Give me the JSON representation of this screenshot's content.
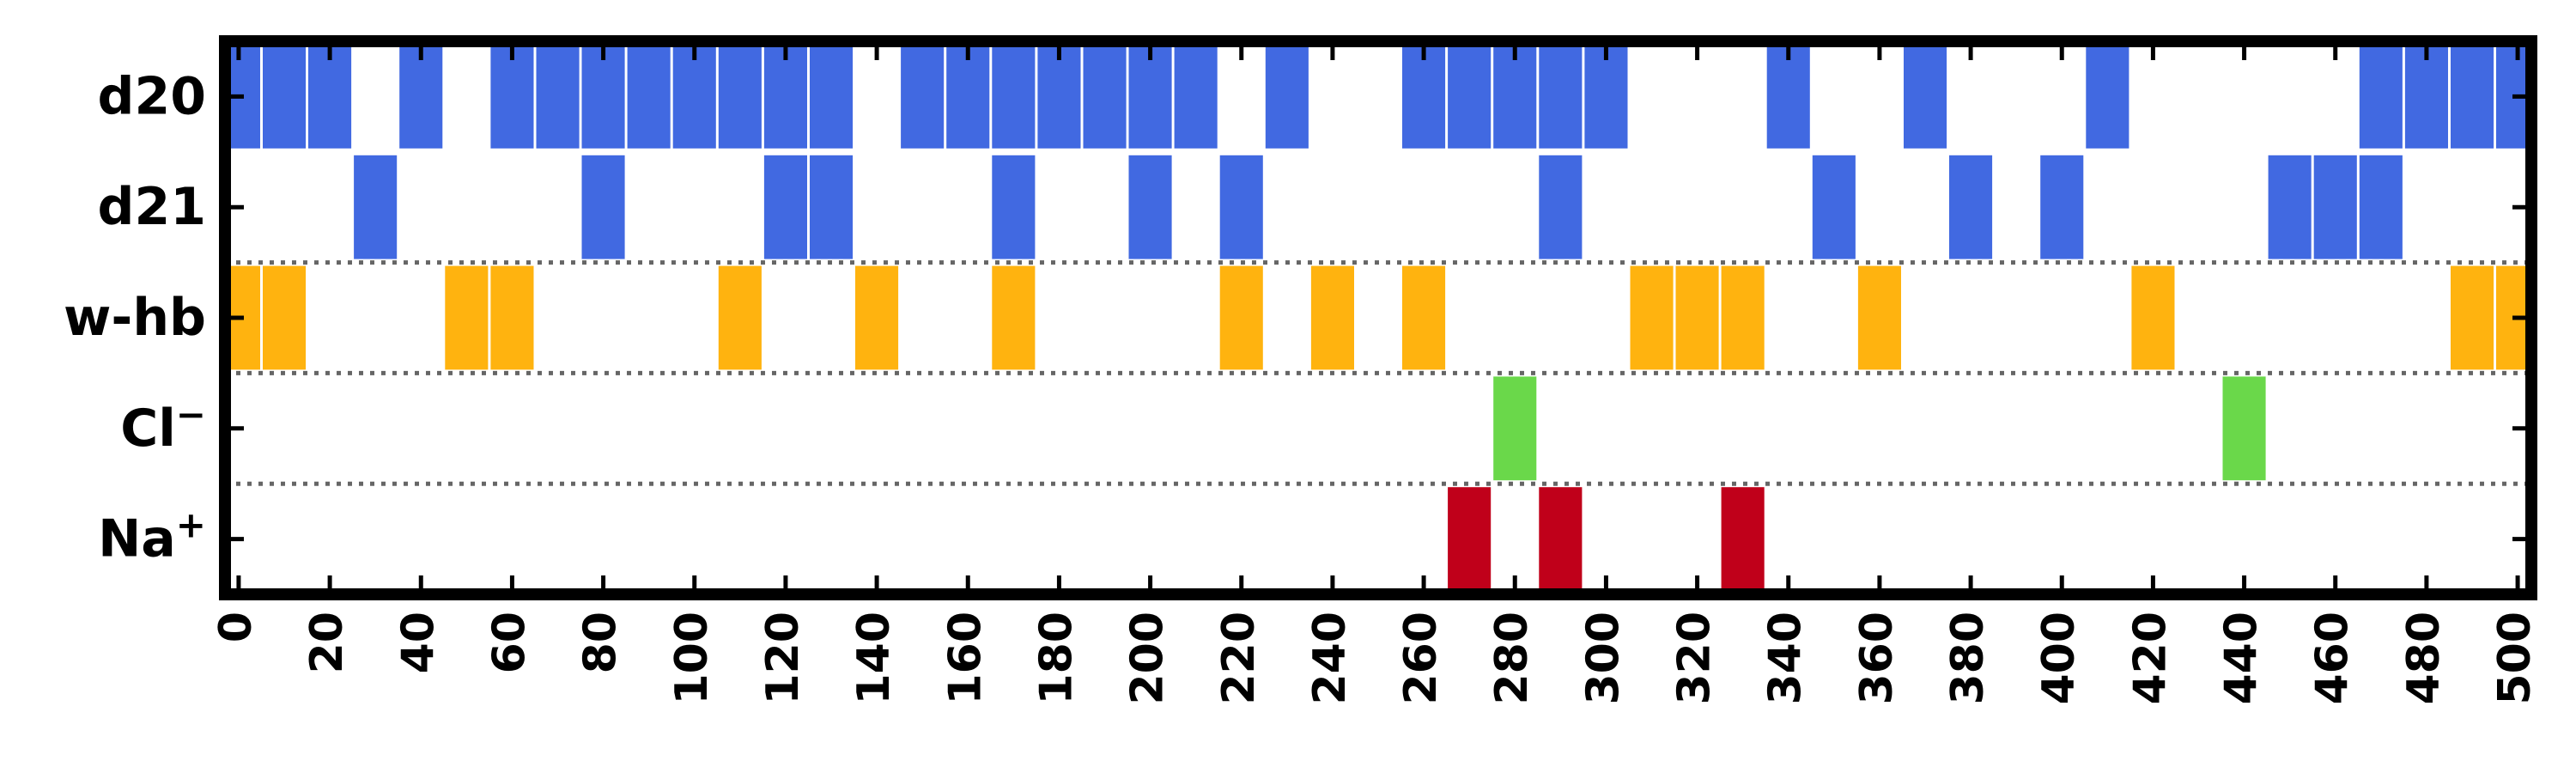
{
  "chart_data": {
    "type": "event-raster",
    "title": "",
    "xlabel": "",
    "ylabel": "",
    "xlim": [
      -3,
      503
    ],
    "xticks": [
      0,
      20,
      40,
      60,
      80,
      100,
      120,
      140,
      160,
      180,
      200,
      220,
      240,
      260,
      280,
      300,
      320,
      340,
      360,
      380,
      400,
      420,
      440,
      460,
      480,
      500
    ],
    "xtick_labels": [
      "0",
      "20",
      "40",
      "60",
      "80",
      "100",
      "120",
      "140",
      "160",
      "180",
      "200",
      "220",
      "240",
      "260",
      "280",
      "300",
      "320",
      "340",
      "360",
      "380",
      "400",
      "420",
      "440",
      "460",
      "480",
      "500"
    ],
    "bin_width": 10,
    "grid": false,
    "row_separators": "dotted lines between w-hb/d21, Cl⁻/w-hb, Na⁺/Cl⁻",
    "rows": [
      {
        "label": "d20",
        "color": "#4169E1",
        "events": [
          0,
          10,
          20,
          40,
          60,
          70,
          80,
          90,
          100,
          110,
          120,
          130,
          150,
          160,
          170,
          180,
          190,
          200,
          210,
          230,
          260,
          270,
          280,
          290,
          300,
          340,
          370,
          410,
          470,
          480,
          490,
          500
        ]
      },
      {
        "label": "d21",
        "color": "#4169E1",
        "events": [
          30,
          80,
          120,
          130,
          170,
          200,
          220,
          290,
          350,
          380,
          400,
          450,
          460,
          470
        ]
      },
      {
        "label": "w-hb",
        "color": "#FFB30F",
        "events": [
          0,
          10,
          50,
          60,
          110,
          140,
          170,
          220,
          240,
          260,
          310,
          320,
          330,
          360,
          420,
          490,
          500
        ]
      },
      {
        "label": "Cl",
        "label_sup": "−",
        "color": "#6AD84A",
        "events": [
          280,
          440
        ]
      },
      {
        "label": "Na",
        "label_sup": "+",
        "color": "#C0001A",
        "events": [
          270,
          290,
          330
        ]
      }
    ]
  }
}
